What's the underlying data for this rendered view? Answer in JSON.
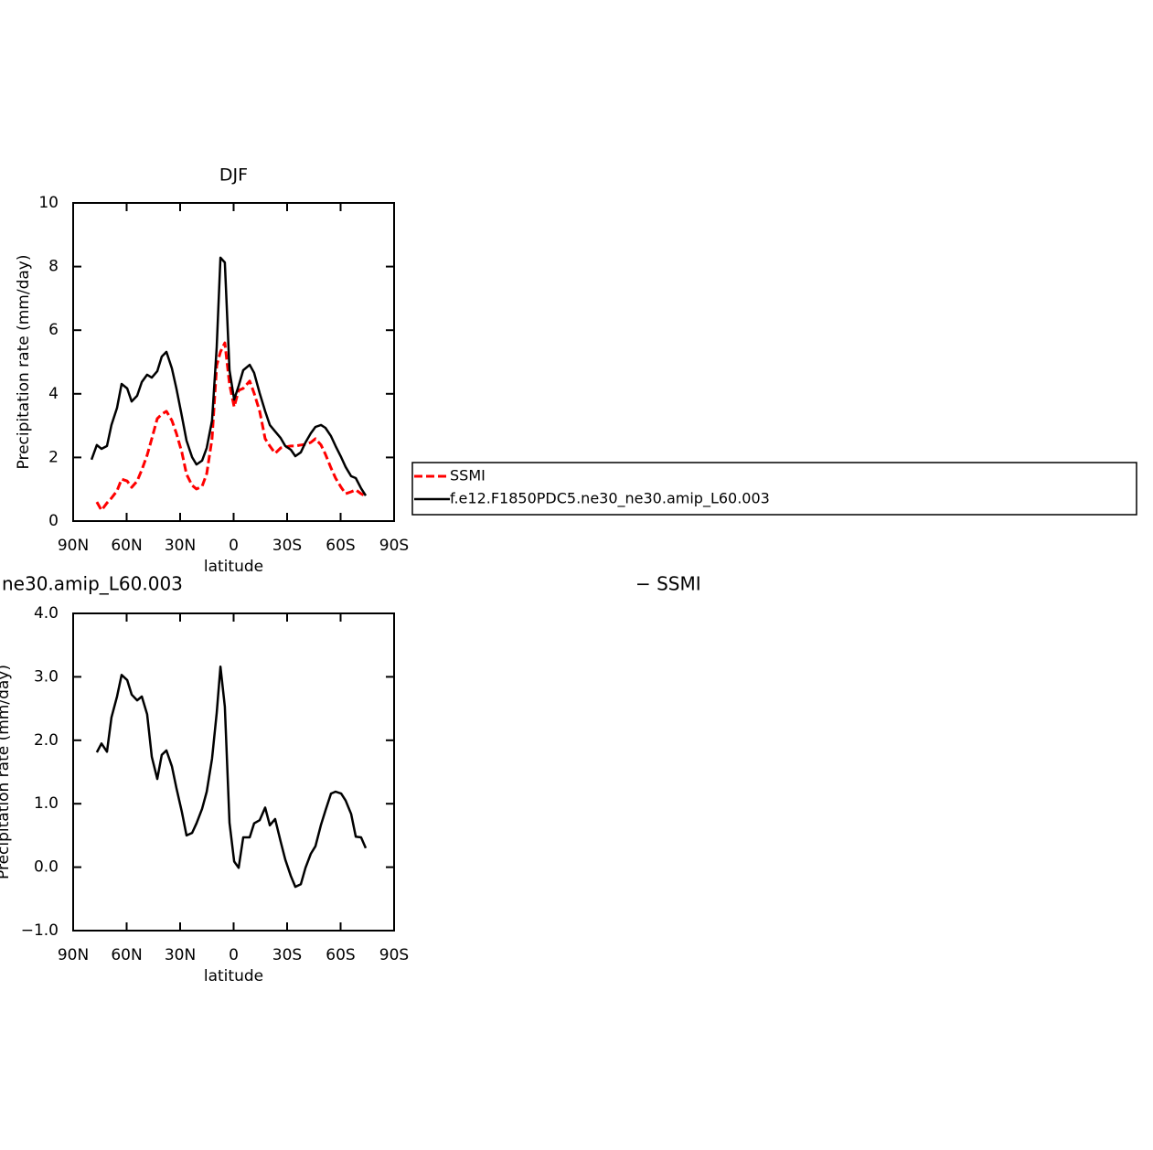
{
  "chart_data": [
    {
      "type": "line",
      "title": "DJF",
      "xlabel": "latitude",
      "ylabel": "Precipitation rate (mm/day)",
      "x": [
        79.7,
        76.7,
        74.1,
        71.0,
        68.5,
        65.4,
        62.8,
        59.7,
        57.2,
        54.1,
        51.5,
        48.5,
        45.9,
        42.8,
        40.3,
        37.7,
        34.6,
        32.1,
        29.0,
        26.4,
        23.3,
        20.8,
        17.7,
        15.1,
        12.1,
        9.5,
        7.4,
        4.9,
        2.3,
        -0.3,
        -2.8,
        -5.4,
        -9.0,
        -11.5,
        -14.6,
        -17.7,
        -20.3,
        -23.3,
        -26.4,
        -29.0,
        -32.1,
        -34.6,
        -37.7,
        -40.3,
        -43.3,
        -45.9,
        -49.0,
        -51.5,
        -54.6,
        -57.2,
        -60.3,
        -62.8,
        -65.9,
        -68.5,
        -71.5,
        -74.1
      ],
      "xlim": [
        90,
        -90
      ],
      "xticks": [
        {
          "value": 90,
          "label": "90N"
        },
        {
          "value": 60,
          "label": "60N"
        },
        {
          "value": 30,
          "label": "30N"
        },
        0,
        {
          "value": -30,
          "label": "30S"
        },
        {
          "value": -60,
          "label": "60S"
        },
        {
          "value": -90,
          "label": "90S"
        }
      ],
      "ylim": [
        0,
        10
      ],
      "yticks": [
        0,
        2,
        4,
        6,
        8,
        10
      ],
      "legend": "right",
      "series": [
        {
          "name": "SSMI",
          "color": "#ff0000",
          "line_style": "dashed",
          "values": [
            null,
            0.6,
            0.34,
            0.57,
            0.72,
            0.95,
            1.32,
            1.26,
            1.06,
            1.26,
            1.61,
            2.07,
            2.59,
            3.22,
            3.36,
            3.45,
            3.16,
            2.76,
            2.16,
            1.47,
            1.12,
            1.01,
            1.09,
            1.49,
            2.59,
            4.89,
            5.32,
            5.6,
            4.31,
            3.59,
            4.11,
            4.17,
            4.4,
            4.02,
            3.45,
            2.59,
            2.36,
            2.13,
            2.3,
            2.33,
            2.36,
            2.36,
            2.39,
            2.41,
            2.47,
            2.59,
            2.39,
            2.1,
            1.67,
            1.35,
            1.06,
            0.86,
            0.92,
            0.98,
            0.86,
            0.78
          ]
        },
        {
          "name": "f.e12.F1850PDC5.ne30_ne30.amip_L60.003",
          "color": "#000000",
          "line_style": "solid",
          "values": [
            1.93,
            2.39,
            2.27,
            2.36,
            3.02,
            3.56,
            4.31,
            4.17,
            3.76,
            3.94,
            4.37,
            4.6,
            4.51,
            4.71,
            5.17,
            5.32,
            4.8,
            4.17,
            3.3,
            2.53,
            2.01,
            1.78,
            1.9,
            2.3,
            3.16,
            5.46,
            8.28,
            8.13,
            4.74,
            3.82,
            4.25,
            4.74,
            4.91,
            4.66,
            4.02,
            3.45,
            3.02,
            2.82,
            2.61,
            2.36,
            2.24,
            2.04,
            2.16,
            2.47,
            2.76,
            2.96,
            3.02,
            2.93,
            2.67,
            2.36,
            2.01,
            1.7,
            1.41,
            1.35,
            1.03,
            0.8
          ]
        }
      ]
    },
    {
      "type": "line",
      "title_left": "ne30.amip_L60.003",
      "title_right": "− SSMI",
      "xlabel": "latitude",
      "ylabel": "Precipitation rate (mm/day)",
      "x": [
        76.7,
        74.1,
        71.0,
        68.5,
        65.4,
        62.8,
        59.7,
        57.2,
        54.1,
        51.5,
        48.5,
        45.9,
        42.8,
        40.3,
        37.7,
        34.6,
        32.1,
        29.0,
        26.4,
        23.3,
        20.8,
        17.7,
        15.1,
        12.1,
        9.5,
        7.4,
        4.9,
        2.3,
        -0.3,
        -2.8,
        -5.4,
        -9.0,
        -11.5,
        -14.6,
        -17.7,
        -20.3,
        -23.3,
        -26.4,
        -29.0,
        -32.1,
        -34.6,
        -37.7,
        -40.3,
        -43.3,
        -45.9,
        -49.0,
        -51.5,
        -54.6,
        -57.2,
        -60.3,
        -62.8,
        -65.9,
        -68.5,
        -71.5,
        -74.1
      ],
      "xlim": [
        90,
        -90
      ],
      "xticks": [
        {
          "value": 90,
          "label": "90N"
        },
        {
          "value": 60,
          "label": "60N"
        },
        {
          "value": 30,
          "label": "30N"
        },
        0,
        {
          "value": -30,
          "label": "30S"
        },
        {
          "value": -60,
          "label": "60S"
        },
        {
          "value": -90,
          "label": "90S"
        }
      ],
      "ylim": [
        -1,
        4
      ],
      "yticks": [
        {
          "value": -1,
          "label": "−1.0"
        },
        {
          "value": 0,
          "label": "0.0"
        },
        {
          "value": 1,
          "label": "1.0"
        },
        {
          "value": 2,
          "label": "2.0"
        },
        {
          "value": 3,
          "label": "3.0"
        },
        {
          "value": 4,
          "label": "4.0"
        }
      ],
      "series": [
        {
          "color": "#000000",
          "line_style": "solid",
          "values": [
            1.81,
            1.95,
            1.82,
            2.36,
            2.69,
            3.03,
            2.95,
            2.72,
            2.63,
            2.69,
            2.41,
            1.74,
            1.39,
            1.77,
            1.84,
            1.59,
            1.25,
            0.87,
            0.5,
            0.54,
            0.69,
            0.92,
            1.19,
            1.71,
            2.43,
            3.16,
            2.53,
            0.7,
            0.09,
            -0.01,
            0.47,
            0.47,
            0.69,
            0.74,
            0.94,
            0.66,
            0.76,
            0.4,
            0.12,
            -0.14,
            -0.31,
            -0.27,
            -0.01,
            0.21,
            0.33,
            0.67,
            0.89,
            1.16,
            1.19,
            1.16,
            1.05,
            0.84,
            0.48,
            0.47,
            0.3
          ]
        }
      ]
    }
  ]
}
